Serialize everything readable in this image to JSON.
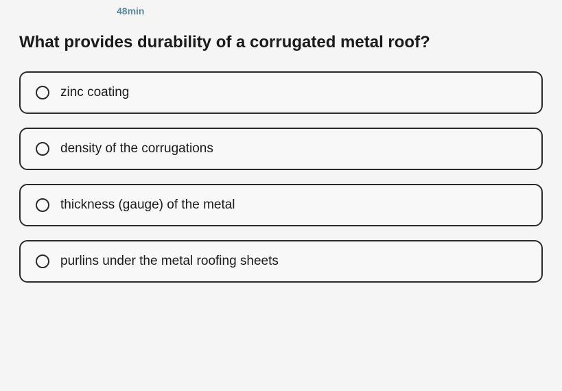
{
  "timer": "48min",
  "question": "What provides durability of a corrugated metal roof?",
  "options": [
    {
      "label": "zinc coating"
    },
    {
      "label": "density of the corrugations"
    },
    {
      "label": "thickness (gauge) of the metal"
    },
    {
      "label": "purlins under the metal roofing sheets"
    }
  ],
  "colors": {
    "timer_text": "#5a8a9a",
    "question_text": "#1a1a1a",
    "option_border": "#2a2a2a",
    "option_bg": "#f8f8f8",
    "page_bg": "#f5f5f5"
  }
}
